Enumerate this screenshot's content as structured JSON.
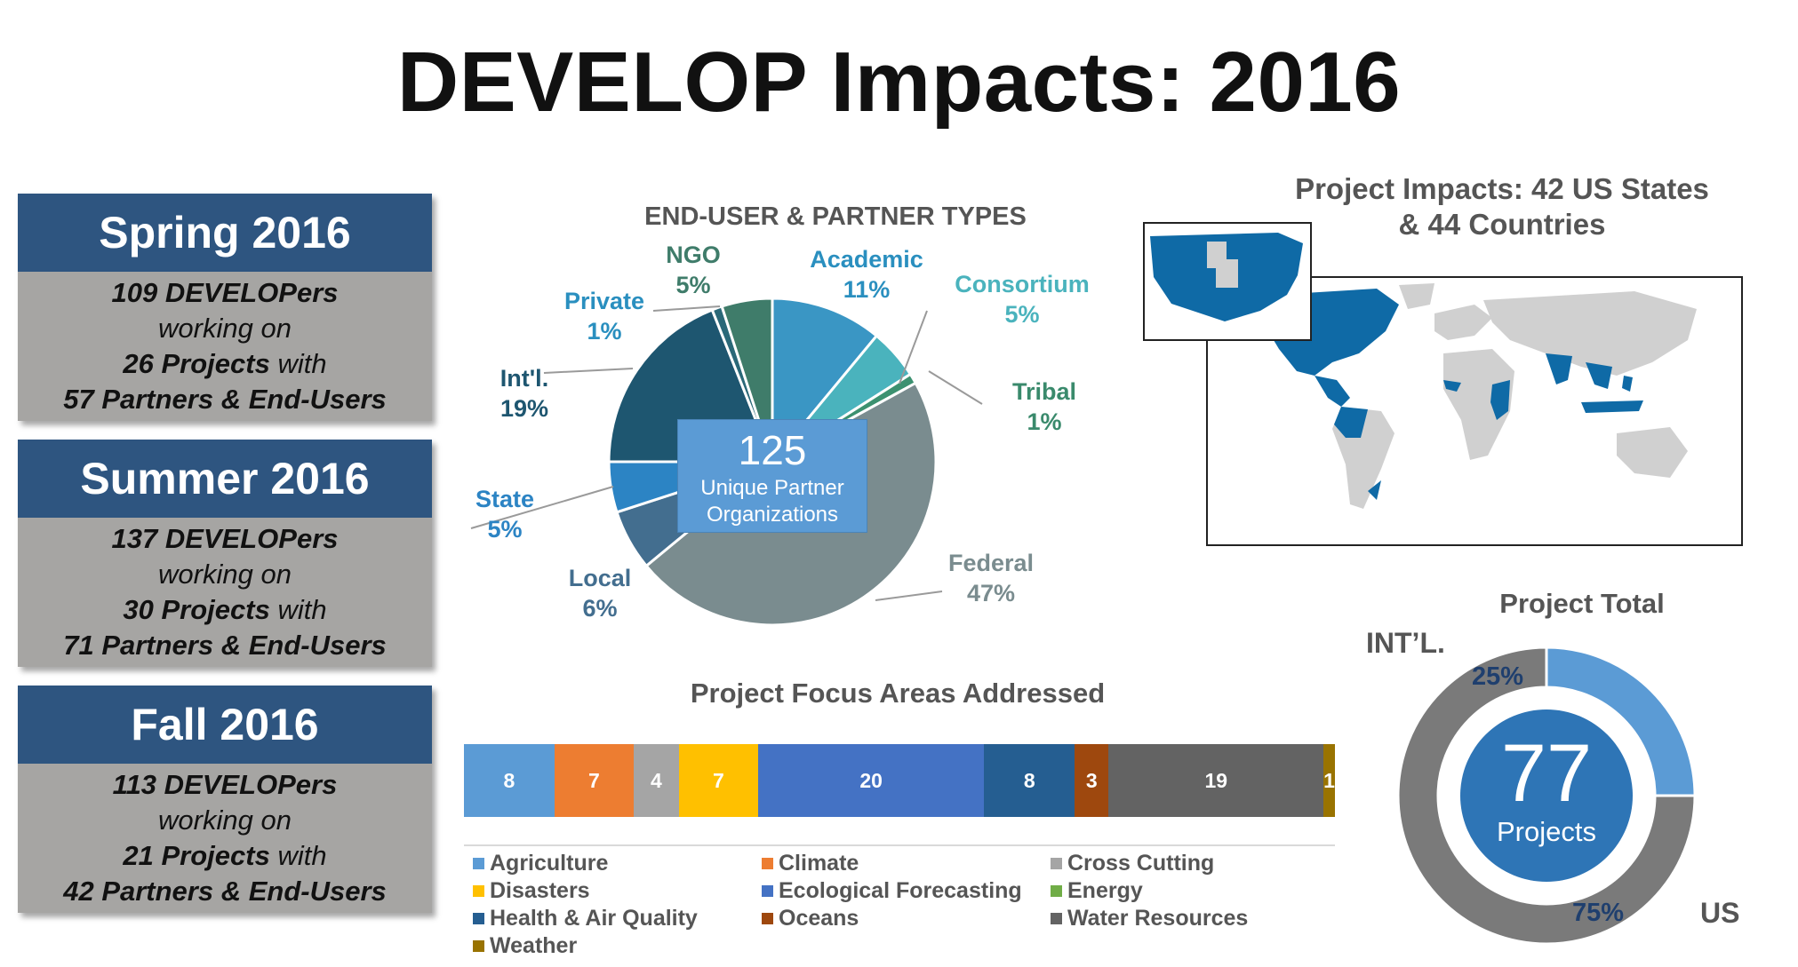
{
  "title": "DEVELOP Impacts: 2016",
  "seasons": [
    {
      "name": "Spring 2016",
      "developers": "109 DEVELOPers",
      "working_on": "working on",
      "projects": "26 Projects",
      "with": "with",
      "partners": "57 Partners & End-Users"
    },
    {
      "name": "Summer 2016",
      "developers": "137 DEVELOPers",
      "working_on": "working on",
      "projects": "30 Projects",
      "with": "with",
      "partners": "71 Partners & End-Users"
    },
    {
      "name": "Fall 2016",
      "developers": "113 DEVELOPers",
      "working_on": "working on",
      "projects": "21 Projects",
      "with": "with",
      "partners": "42 Partners & End-Users"
    }
  ],
  "map": {
    "title_line1": "Project Impacts: 42 US States",
    "title_line2": "& 44 Countries",
    "highlight_color": "#0f6aa6",
    "base_color": "#d0d0d0"
  },
  "chart_data": [
    {
      "type": "pie",
      "title": "END-USER & PARTNER TYPES",
      "center_value": "125",
      "center_label": "Unique Partner Organizations",
      "slices": [
        {
          "name": "Academic",
          "value": 11,
          "label": "11%",
          "color": "#3a96c4"
        },
        {
          "name": "Consortium",
          "value": 5,
          "label": "5%",
          "color": "#4ab3bd"
        },
        {
          "name": "Tribal",
          "value": 1,
          "label": "1%",
          "color": "#3c9170"
        },
        {
          "name": "Federal",
          "value": 47,
          "label": "47%",
          "color": "#7a8c8f"
        },
        {
          "name": "Local",
          "value": 6,
          "label": "6%",
          "color": "#436e8f"
        },
        {
          "name": "State",
          "value": 5,
          "label": "5%",
          "color": "#2c84c4"
        },
        {
          "name": "Int'l.",
          "value": 19,
          "label": "19%",
          "color": "#1e5670"
        },
        {
          "name": "Private",
          "value": 1,
          "label": "1%",
          "color": "#2a6878"
        },
        {
          "name": "NGO",
          "value": 5,
          "label": "5%",
          "color": "#3f7c6a"
        }
      ]
    },
    {
      "type": "bar",
      "orientation": "stacked-horizontal",
      "title": "Project Focus Areas Addressed",
      "series": [
        {
          "name": "Agriculture",
          "value": 8,
          "color": "#5b9bd5"
        },
        {
          "name": "Climate",
          "value": 7,
          "color": "#ed7d31"
        },
        {
          "name": "Cross Cutting",
          "value": 4,
          "color": "#a5a5a5"
        },
        {
          "name": "Disasters",
          "value": 7,
          "color": "#ffc000"
        },
        {
          "name": "Ecological Forecasting",
          "value": 20,
          "color": "#4472c4"
        },
        {
          "name": "Energy",
          "value": 0,
          "color": "#70ad47"
        },
        {
          "name": "Health & Air Quality",
          "value": 8,
          "color": "#255e91"
        },
        {
          "name": "Oceans",
          "value": 3,
          "color": "#9e480e"
        },
        {
          "name": "Water Resources",
          "value": 19,
          "color": "#636363"
        },
        {
          "name": "Weather",
          "value": 1,
          "color": "#997300"
        }
      ]
    },
    {
      "type": "pie",
      "style": "donut",
      "title": "Project Total",
      "center_value": "77",
      "center_label": "Projects",
      "slices": [
        {
          "name": "INT’L.",
          "value": 25,
          "label": "25%",
          "color": "#5b9bd5"
        },
        {
          "name": "US",
          "value": 75,
          "label": "75%",
          "color": "#7a7a7a"
        }
      ]
    }
  ]
}
